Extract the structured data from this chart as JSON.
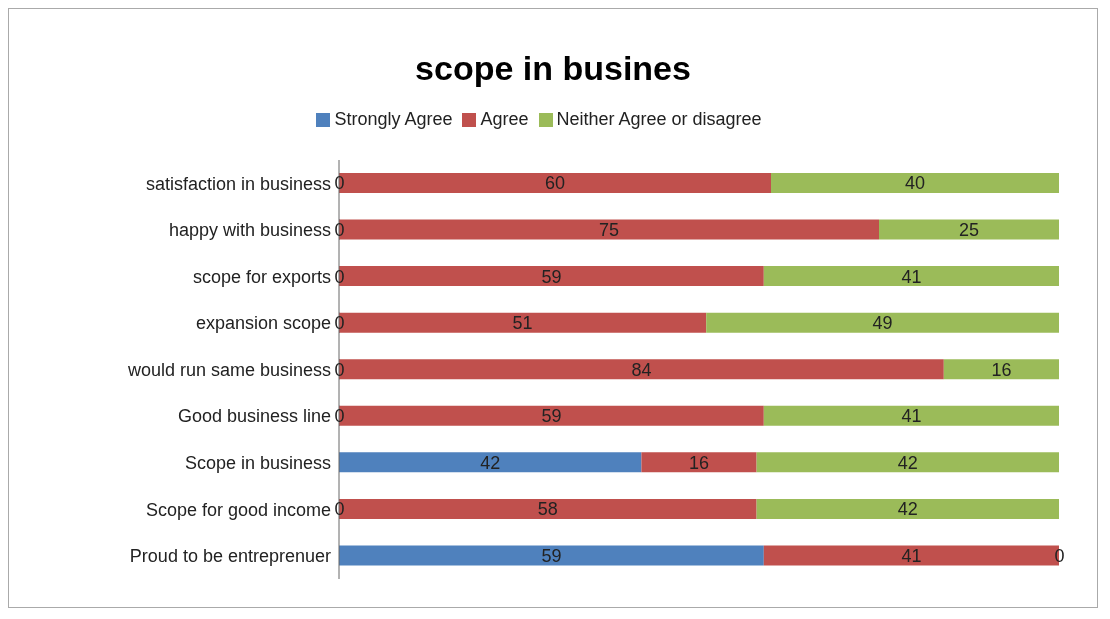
{
  "chart_data": {
    "type": "bar",
    "orientation": "horizontal",
    "stacked": true,
    "title": "scope in busines",
    "categories": [
      "satisfaction in business",
      "happy with business",
      "scope for exports",
      "expansion scope",
      "would run same business",
      "Good business line",
      "Scope in business",
      "Scope for good income",
      "Proud to be entreprenuer"
    ],
    "series": [
      {
        "name": "Strongly Agree",
        "color": "#4f81bd",
        "values": [
          0,
          0,
          0,
          0,
          0,
          0,
          42,
          0,
          59
        ]
      },
      {
        "name": "Agree",
        "color": "#c0504d",
        "values": [
          60,
          75,
          59,
          51,
          84,
          59,
          16,
          58,
          41
        ]
      },
      {
        "name": "Neither Agree or disagree",
        "color": "#9bbb59",
        "values": [
          40,
          25,
          41,
          49,
          16,
          41,
          42,
          42,
          0
        ]
      }
    ],
    "data_labels": true,
    "legend": "top",
    "grid": false,
    "tick_labels": "y"
  }
}
